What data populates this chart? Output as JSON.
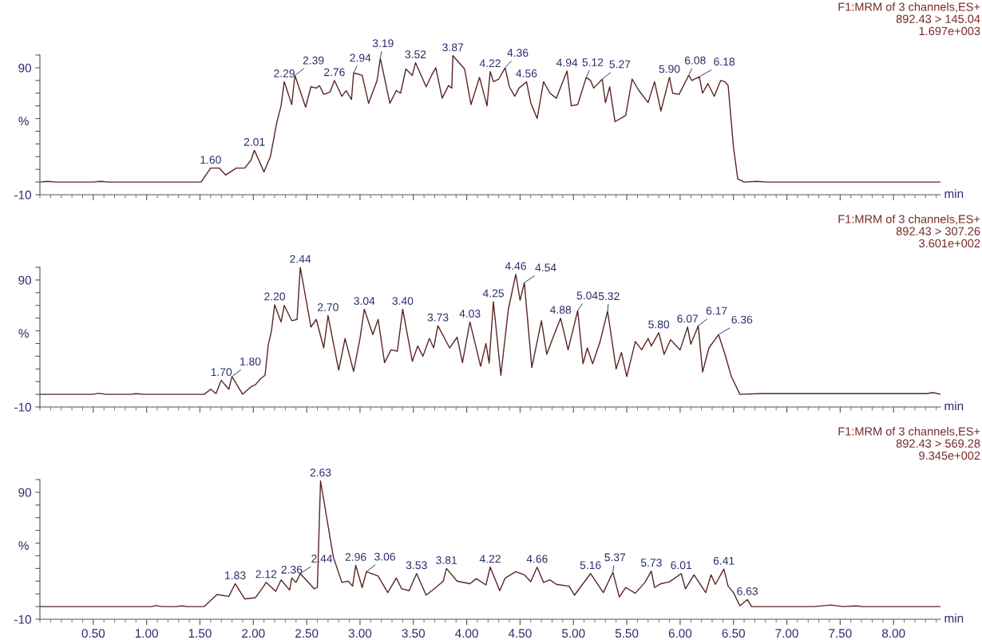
{
  "chart_data": [
    {
      "type": "line",
      "xlabel": "min",
      "ylabel": "%",
      "xlim": [
        0,
        8.44
      ],
      "ylim": [
        -10,
        100
      ],
      "xticks": [
        0.5,
        1,
        1.5,
        2,
        2.5,
        3,
        3.5,
        4,
        4.5,
        5,
        5.5,
        6,
        6.5,
        7,
        7.5,
        8
      ],
      "yticks": [
        -10,
        {
          "value": 0,
          "label": null
        },
        {
          "value": 10,
          "label": null
        },
        {
          "value": 20,
          "label": null
        },
        {
          "value": 30,
          "label": null
        },
        {
          "value": 40,
          "label": null
        },
        {
          "value": 50,
          "label": null
        },
        {
          "value": 60,
          "label": null
        },
        {
          "value": 70,
          "label": null
        },
        {
          "value": 80,
          "label": null
        },
        90,
        {
          "value": 100,
          "label": null
        }
      ],
      "tick_labels": "y",
      "grid": false,
      "legend": false,
      "x": [
        0,
        0.07,
        0.15,
        0.5,
        0.57,
        0.64,
        1.51,
        1.6,
        1.68,
        1.74,
        1.84,
        1.92,
        1.98,
        2.01,
        2.1,
        2.16,
        2.22,
        2.26,
        2.29,
        2.36,
        2.39,
        2.49,
        2.54,
        2.59,
        2.62,
        2.66,
        2.72,
        2.76,
        2.83,
        2.87,
        2.92,
        2.94,
        3.02,
        3.08,
        3.16,
        3.19,
        3.28,
        3.34,
        3.38,
        3.43,
        3.49,
        3.52,
        3.62,
        3.67,
        3.71,
        3.77,
        3.83,
        3.86,
        3.87,
        3.98,
        4.04,
        4.12,
        4.19,
        4.22,
        4.25,
        4.3,
        4.36,
        4.4,
        4.45,
        4.49,
        4.56,
        4.6,
        4.66,
        4.72,
        4.78,
        4.84,
        4.94,
        4.98,
        5.04,
        5.12,
        5.16,
        5.19,
        5.27,
        5.3,
        5.34,
        5.39,
        5.49,
        5.55,
        5.61,
        5.7,
        5.76,
        5.82,
        5.9,
        5.93,
        5.99,
        6.08,
        6.11,
        6.18,
        6.21,
        6.26,
        6.32,
        6.38,
        6.42,
        6.45,
        6.5,
        6.54,
        6.6,
        6.72,
        6.81,
        8.44
      ],
      "series": [
        {
          "color": "#5a2424",
          "values": [
            0,
            0.5,
            0,
            0,
            0.5,
            0,
            0,
            11,
            11,
            5.5,
            11,
            11,
            17.5,
            25,
            8,
            20,
            47,
            60,
            79,
            61,
            84,
            59,
            75,
            74,
            76,
            69,
            71,
            80,
            67.5,
            72,
            65,
            86,
            84,
            62,
            80,
            97.5,
            62,
            72,
            70,
            89,
            84,
            94,
            75,
            84,
            90,
            66,
            76,
            74,
            99.5,
            89,
            61,
            82.5,
            60,
            87,
            79,
            81,
            90,
            75,
            67.5,
            74,
            79,
            62.5,
            50,
            79,
            70,
            66,
            87.5,
            60,
            61,
            82.5,
            80,
            74,
            81,
            62.5,
            75,
            47.5,
            52.5,
            81,
            72.5,
            62.5,
            79,
            56,
            82.5,
            70,
            69,
            84,
            80,
            83,
            70,
            77.5,
            67.5,
            80,
            79,
            76,
            27.5,
            2.5,
            0,
            0.5,
            0,
            0
          ]
        }
      ],
      "annotations": [
        "F1:MRM of 3 channels,ES+",
        "892.43 > 145.04",
        "1.697e+003",
        {
          "text": "1.60",
          "x": 1.6,
          "y": 11
        },
        {
          "text": "2.01",
          "x": 2.01,
          "y": 25
        },
        {
          "text": "2.29",
          "x": 2.29,
          "y": 79
        },
        {
          "text": "2.39",
          "x": 2.39,
          "y": 84
        },
        {
          "text": "2.76",
          "x": 2.76,
          "y": 80
        },
        {
          "text": "2.94",
          "x": 2.94,
          "y": 86
        },
        {
          "text": "3.19",
          "x": 3.19,
          "y": 97.5
        },
        {
          "text": "3.52",
          "x": 3.52,
          "y": 94
        },
        {
          "text": "3.87",
          "x": 3.87,
          "y": 99.5
        },
        {
          "text": "4.22",
          "x": 4.22,
          "y": 87
        },
        {
          "text": "4.36",
          "x": 4.36,
          "y": 90
        },
        {
          "text": "4.56",
          "x": 4.56,
          "y": 79
        },
        {
          "text": "4.94",
          "x": 4.94,
          "y": 87.5
        },
        {
          "text": "5.12",
          "x": 5.12,
          "y": 82.5
        },
        {
          "text": "5.27",
          "x": 5.27,
          "y": 81
        },
        {
          "text": "5.90",
          "x": 5.9,
          "y": 82.5
        },
        {
          "text": "6.08",
          "x": 6.08,
          "y": 84
        },
        {
          "text": "6.18",
          "x": 6.18,
          "y": 83
        }
      ]
    },
    {
      "type": "line",
      "xlabel": "min",
      "ylabel": "%",
      "xlim": [
        0,
        8.44
      ],
      "ylim": [
        -10,
        100
      ],
      "xticks": [
        0.5,
        1,
        1.5,
        2,
        2.5,
        3,
        3.5,
        4,
        4.5,
        5,
        5.5,
        6,
        6.5,
        7,
        7.5,
        8
      ],
      "yticks": [
        -10,
        {
          "value": 0,
          "label": null
        },
        {
          "value": 10,
          "label": null
        },
        {
          "value": 20,
          "label": null
        },
        {
          "value": 30,
          "label": null
        },
        {
          "value": 40,
          "label": null
        },
        {
          "value": 50,
          "label": null
        },
        {
          "value": 60,
          "label": null
        },
        {
          "value": 70,
          "label": null
        },
        {
          "value": 80,
          "label": null
        },
        90,
        {
          "value": 100,
          "label": null
        }
      ],
      "tick_labels": "y",
      "grid": false,
      "legend": false,
      "x": [
        0,
        0.5,
        0.55,
        0.62,
        0.85,
        0.9,
        0.97,
        1.54,
        1.6,
        1.65,
        1.7,
        1.77,
        1.8,
        1.9,
        1.98,
        2.02,
        2.07,
        2.11,
        2.14,
        2.17,
        2.2,
        2.26,
        2.29,
        2.36,
        2.41,
        2.44,
        2.54,
        2.59,
        2.66,
        2.7,
        2.8,
        2.86,
        2.94,
        3.0,
        3.04,
        3.12,
        3.17,
        3.23,
        3.29,
        3.35,
        3.4,
        3.49,
        3.54,
        3.59,
        3.65,
        3.69,
        3.73,
        3.84,
        3.91,
        3.96,
        4.03,
        4.13,
        4.18,
        4.21,
        4.25,
        4.32,
        4.39,
        4.46,
        4.5,
        4.54,
        4.61,
        4.7,
        4.75,
        4.81,
        4.88,
        4.95,
        5.04,
        5.09,
        5.13,
        5.18,
        5.25,
        5.32,
        5.4,
        5.45,
        5.5,
        5.58,
        5.64,
        5.7,
        5.73,
        5.8,
        5.85,
        5.91,
        6.0,
        6.07,
        6.1,
        6.17,
        6.21,
        6.27,
        6.36,
        6.42,
        6.48,
        6.56,
        6.75,
        8.31,
        8.37,
        8.44
      ],
      "series": [
        {
          "color": "#5a2424",
          "values": [
            0,
            0,
            0.8,
            0,
            0,
            0.5,
            0,
            0,
            4,
            0.5,
            11,
            4,
            14,
            0,
            6,
            7.5,
            12.5,
            15,
            39,
            50,
            70.5,
            57,
            70,
            58,
            59,
            100,
            53,
            59,
            36.5,
            62,
            19,
            44,
            18,
            44,
            67,
            47,
            59,
            25,
            35,
            34,
            67,
            26,
            38,
            30,
            44,
            36.5,
            54,
            36.5,
            45,
            25,
            57,
            22,
            40,
            24.5,
            73,
            15,
            67,
            94.5,
            74,
            88,
            21,
            58,
            31.5,
            45,
            60,
            35,
            66,
            24,
            36.5,
            24,
            41.5,
            65.5,
            20,
            33,
            14,
            41.5,
            35,
            44,
            38,
            48.5,
            31.5,
            43,
            35,
            53,
            39.5,
            54,
            17.5,
            36.5,
            47,
            31.5,
            14,
            0,
            0.5,
            0.5,
            1.3,
            0
          ]
        }
      ],
      "annotations": [
        "F1:MRM of 3 channels,ES+",
        "892.43 > 307.26",
        "3.601e+002",
        {
          "text": "1.70",
          "x": 1.7,
          "y": 11
        },
        {
          "text": "1.80",
          "x": 1.8,
          "y": 14
        },
        {
          "text": "2.20",
          "x": 2.2,
          "y": 70.5
        },
        {
          "text": "2.44",
          "x": 2.44,
          "y": 100
        },
        {
          "text": "2.70",
          "x": 2.7,
          "y": 62
        },
        {
          "text": "3.04",
          "x": 3.04,
          "y": 67
        },
        {
          "text": "3.40",
          "x": 3.4,
          "y": 67
        },
        {
          "text": "3.73",
          "x": 3.73,
          "y": 54
        },
        {
          "text": "4.03",
          "x": 4.03,
          "y": 57
        },
        {
          "text": "4.25",
          "x": 4.25,
          "y": 73
        },
        {
          "text": "4.46",
          "x": 4.46,
          "y": 94.5
        },
        {
          "text": "4.54",
          "x": 4.54,
          "y": 88
        },
        {
          "text": "4.88",
          "x": 4.88,
          "y": 60
        },
        {
          "text": "5.04",
          "x": 5.04,
          "y": 66
        },
        {
          "text": "5.32",
          "x": 5.32,
          "y": 65.5
        },
        {
          "text": "5.80",
          "x": 5.8,
          "y": 48.5
        },
        {
          "text": "6.07",
          "x": 6.07,
          "y": 53
        },
        {
          "text": "6.17",
          "x": 6.17,
          "y": 54
        },
        {
          "text": "6.36",
          "x": 6.36,
          "y": 47
        }
      ]
    },
    {
      "type": "line",
      "xlabel": "min",
      "ylabel": "%",
      "xlim": [
        0,
        8.44
      ],
      "ylim": [
        -10,
        100
      ],
      "xticks": [
        {
          "value": 0.5,
          "label": "0.50"
        },
        {
          "value": 1,
          "label": "1.00"
        },
        {
          "value": 1.5,
          "label": "1.50"
        },
        {
          "value": 2,
          "label": "2.00"
        },
        {
          "value": 2.5,
          "label": "2.50"
        },
        {
          "value": 3,
          "label": "3.00"
        },
        {
          "value": 3.5,
          "label": "3.50"
        },
        {
          "value": 4,
          "label": "4.00"
        },
        {
          "value": 4.5,
          "label": "4.50"
        },
        {
          "value": 5,
          "label": "5.00"
        },
        {
          "value": 5.5,
          "label": "5.50"
        },
        {
          "value": 6,
          "label": "6.00"
        },
        {
          "value": 6.5,
          "label": "6.50"
        },
        {
          "value": 7,
          "label": "7.00"
        },
        {
          "value": 7.5,
          "label": "7.50"
        },
        {
          "value": 8,
          "label": "8.00"
        }
      ],
      "yticks": [
        -10,
        {
          "value": 0,
          "label": null
        },
        {
          "value": 10,
          "label": null
        },
        {
          "value": 20,
          "label": null
        },
        {
          "value": 30,
          "label": null
        },
        {
          "value": 40,
          "label": null
        },
        {
          "value": 50,
          "label": null
        },
        {
          "value": 60,
          "label": null
        },
        {
          "value": 70,
          "label": null
        },
        {
          "value": 80,
          "label": null
        },
        90,
        {
          "value": 100,
          "label": null
        }
      ],
      "grid": false,
      "legend": false,
      "x": [
        0,
        1.05,
        1.09,
        1.14,
        1.28,
        1.33,
        1.38,
        1.54,
        1.66,
        1.77,
        1.83,
        1.92,
        2.02,
        2.08,
        2.12,
        2.21,
        2.26,
        2.34,
        2.36,
        2.4,
        2.44,
        2.57,
        2.6,
        2.63,
        2.75,
        2.83,
        2.89,
        2.93,
        2.96,
        3.02,
        3.06,
        3.17,
        3.26,
        3.34,
        3.39,
        3.46,
        3.53,
        3.62,
        3.71,
        3.78,
        3.81,
        3.91,
        4.03,
        4.09,
        4.18,
        4.22,
        4.31,
        4.36,
        4.46,
        4.54,
        4.6,
        4.66,
        4.72,
        4.78,
        4.84,
        4.96,
        5.01,
        5.16,
        5.28,
        5.37,
        5.43,
        5.49,
        5.58,
        5.67,
        5.73,
        5.76,
        5.82,
        5.9,
        6.01,
        6.05,
        6.13,
        6.24,
        6.29,
        6.33,
        6.41,
        6.45,
        6.5,
        6.56,
        6.63,
        6.67,
        7.26,
        7.41,
        7.53,
        7.65,
        7.71,
        8.44
      ],
      "series": [
        {
          "color": "#5a2424",
          "values": [
            0,
            0,
            0.8,
            0,
            0,
            0.5,
            0,
            0,
            9.5,
            8,
            18,
            6,
            7,
            14,
            19,
            12,
            21,
            13,
            22.5,
            19,
            26,
            14,
            15,
            99,
            39,
            19,
            20,
            16,
            32.5,
            15,
            27.5,
            24,
            11,
            22.5,
            14,
            12.5,
            26,
            9,
            15,
            20,
            30,
            20,
            18,
            22,
            17,
            31,
            12.5,
            22.5,
            27.5,
            25,
            19.5,
            31,
            19,
            21,
            17.5,
            16,
            9,
            26,
            11,
            27,
            7.5,
            15,
            10.5,
            19,
            28,
            15,
            18,
            19.5,
            26,
            14,
            25,
            11,
            25,
            17.5,
            29.5,
            16,
            11,
            0.5,
            5.5,
            0,
            0,
            1.2,
            0,
            0.5,
            0,
            0
          ]
        }
      ],
      "annotations": [
        "F1:MRM of 3 channels,ES+",
        "892.43 > 569.28",
        "9.345e+002",
        {
          "text": "1.83",
          "x": 1.83,
          "y": 18
        },
        {
          "text": "2.12",
          "x": 2.12,
          "y": 19
        },
        {
          "text": "2.36",
          "x": 2.36,
          "y": 22.5
        },
        {
          "text": "2.44",
          "x": 2.44,
          "y": 26
        },
        {
          "text": "2.63",
          "x": 2.63,
          "y": 99
        },
        {
          "text": "2.96",
          "x": 2.96,
          "y": 32.5
        },
        {
          "text": "3.06",
          "x": 3.06,
          "y": 27.5
        },
        {
          "text": "3.53",
          "x": 3.53,
          "y": 26
        },
        {
          "text": "3.81",
          "x": 3.81,
          "y": 30
        },
        {
          "text": "4.22",
          "x": 4.22,
          "y": 31
        },
        {
          "text": "4.66",
          "x": 4.66,
          "y": 31
        },
        {
          "text": "5.16",
          "x": 5.16,
          "y": 26
        },
        {
          "text": "5.37",
          "x": 5.37,
          "y": 27
        },
        {
          "text": "5.73",
          "x": 5.73,
          "y": 28
        },
        {
          "text": "6.01",
          "x": 6.01,
          "y": 26
        },
        {
          "text": "6.41",
          "x": 6.41,
          "y": 29.5
        },
        {
          "text": "6.63",
          "x": 6.63,
          "y": 5.5
        }
      ]
    }
  ]
}
